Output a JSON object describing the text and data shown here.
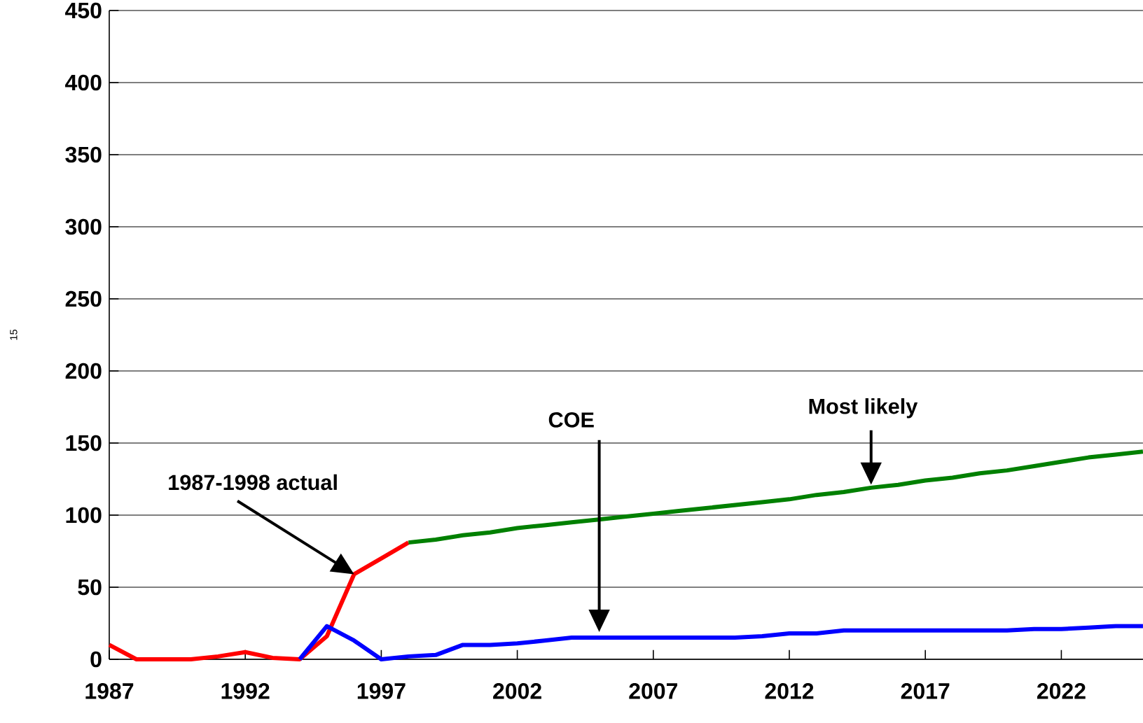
{
  "chart_data": {
    "type": "line",
    "ylabel": "15",
    "xlim": [
      1987,
      2025
    ],
    "xticks": [
      1987,
      1992,
      1997,
      2002,
      2007,
      2012,
      2017,
      2022
    ],
    "ylim": [
      0,
      450
    ],
    "yticks": [
      0,
      50,
      100,
      150,
      200,
      250,
      300,
      350,
      400,
      450
    ],
    "grid": "y",
    "marker": "none",
    "line_style": "solid",
    "series": [
      {
        "color": "#ff0000",
        "x": [
          1987,
          1988,
          1989,
          1990,
          1991,
          1992,
          1993,
          1994,
          1995,
          1996,
          1997,
          1998
        ],
        "values": [
          10,
          0,
          0,
          0,
          2,
          5,
          1,
          0,
          16,
          59,
          70,
          81
        ]
      },
      {
        "color": "#0000ff",
        "x": [
          1994,
          1995,
          1996,
          1997,
          1998,
          1999,
          2000,
          2001,
          2002,
          2003,
          2004,
          2005,
          2006,
          2007,
          2008,
          2009,
          2010,
          2011,
          2012,
          2013,
          2014,
          2015,
          2016,
          2017,
          2018,
          2019,
          2020,
          2021,
          2022,
          2023,
          2024,
          2025
        ],
        "values": [
          0,
          23,
          13,
          0,
          2,
          3,
          10,
          10,
          11,
          13,
          15,
          15,
          15,
          15,
          15,
          15,
          15,
          16,
          18,
          18,
          20,
          20,
          20,
          20,
          20,
          20,
          20,
          21,
          21,
          22,
          23,
          23
        ]
      },
      {
        "color": "#008000",
        "x": [
          1998,
          1999,
          2000,
          2001,
          2002,
          2003,
          2004,
          2005,
          2006,
          2007,
          2008,
          2009,
          2010,
          2011,
          2012,
          2013,
          2014,
          2015,
          2016,
          2017,
          2018,
          2019,
          2020,
          2021,
          2022,
          2023,
          2024,
          2025
        ],
        "values": [
          81,
          83,
          86,
          88,
          91,
          93,
          95,
          97,
          99,
          101,
          103,
          105,
          107,
          109,
          111,
          114,
          116,
          119,
          121,
          124,
          126,
          129,
          131,
          134,
          137,
          140,
          142,
          144
        ]
      }
    ],
    "annotations": [
      "1987-1998 actual",
      "COE",
      "Most likely"
    ]
  }
}
